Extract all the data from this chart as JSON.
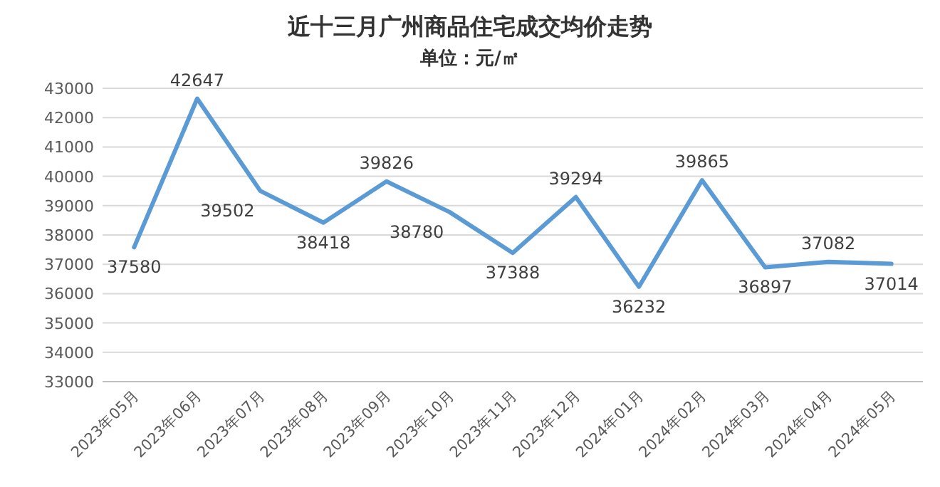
{
  "chart_data": {
    "type": "line",
    "title": "近十三月广州商品住宅成交均价走势",
    "subtitle": "单位：元/㎡",
    "categories": [
      "2023年05月",
      "2023年06月",
      "2023年07月",
      "2023年08月",
      "2023年09月",
      "2023年10月",
      "2023年11月",
      "2023年12月",
      "2024年01月",
      "2024年02月",
      "2024年03月",
      "2024年04月",
      "2024年05月"
    ],
    "values": [
      37580,
      42647,
      39502,
      38418,
      39826,
      38780,
      37388,
      39294,
      36232,
      39865,
      36897,
      37082,
      37014
    ],
    "color": "#5b9bd5",
    "ylim": [
      33000,
      43000
    ],
    "yticks": [
      33000,
      34000,
      35000,
      36000,
      37000,
      38000,
      39000,
      40000,
      41000,
      42000,
      43000
    ],
    "grid": "y",
    "data_labels": true
  }
}
